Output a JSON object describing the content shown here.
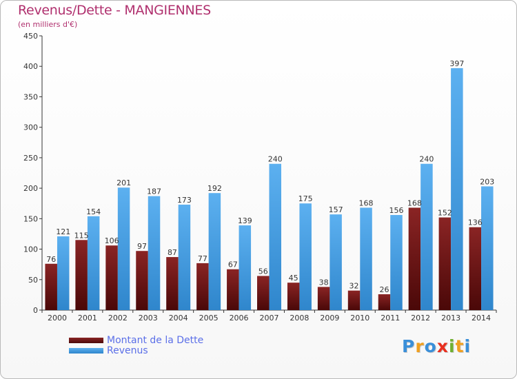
{
  "chart_data": {
    "type": "bar",
    "title": "Revenus/Dette - MANGIENNES",
    "subtitle": "(en milliers d'€)",
    "categories": [
      "2000",
      "2001",
      "2002",
      "2003",
      "2004",
      "2005",
      "2006",
      "2007",
      "2008",
      "2009",
      "2010",
      "2011",
      "2012",
      "2013",
      "2014"
    ],
    "series": [
      {
        "name": "Montant de la Dette",
        "color": "#7a1a1a",
        "values": [
          76,
          115,
          106,
          97,
          87,
          77,
          67,
          56,
          45,
          38,
          32,
          26,
          168,
          152,
          136
        ]
      },
      {
        "name": "Revenus",
        "color": "#4aa3e6",
        "values": [
          121,
          154,
          201,
          187,
          173,
          192,
          139,
          240,
          175,
          157,
          168,
          156,
          240,
          397,
          203
        ]
      }
    ],
    "ylim": [
      0,
      450
    ],
    "yticks": [
      0,
      50,
      100,
      150,
      200,
      250,
      300,
      350,
      400,
      450
    ],
    "grid": false,
    "legend_position": "bottom-left"
  },
  "logo": {
    "letters": [
      "P",
      "r",
      "o",
      "x",
      "i",
      "t",
      "i"
    ],
    "colors": [
      "#3a8fd9",
      "#f0a020",
      "#3a8fd9",
      "#e83020",
      "#70b030",
      "#f0a020",
      "#3a8fd9"
    ]
  }
}
